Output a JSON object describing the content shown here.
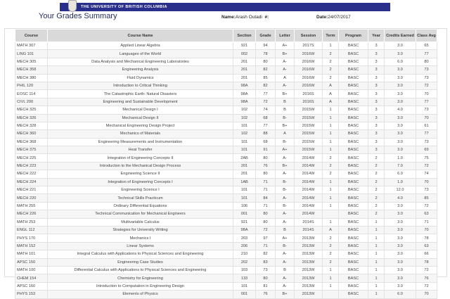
{
  "header": {
    "university": "THE UNIVERSITY OF BRITISH COLUMBIA",
    "logo_text": "UBC",
    "title": "Your Grades Summary",
    "name_label": "Name:",
    "name_value": "Arash Outadi",
    "id_label": "#:",
    "date_label": "Date:",
    "date_value": "24/07/2017"
  },
  "table": {
    "columns": [
      "Course",
      "Course Name",
      "Section",
      "Grade",
      "Letter",
      "Session",
      "Term",
      "Program",
      "Year",
      "Credits Earned",
      "Class Avg"
    ],
    "rows": [
      [
        "MATH 307",
        "Applied Linear Algebra",
        "921",
        "94",
        "A+",
        "2017S",
        "1",
        "BASC",
        "3",
        "3.0",
        "65"
      ],
      [
        "LING 101",
        "Languages of the World",
        "002",
        "78",
        "B+",
        "2016W",
        "2",
        "BASC",
        "3",
        "3.0",
        "77"
      ],
      [
        "MECH 305",
        "Data Analysis and Mechanical Engineering Laboratories",
        "201",
        "80",
        "A-",
        "2016W",
        "2",
        "BASC",
        "3",
        "6.0",
        "80"
      ],
      [
        "MECH 358",
        "Engineering Analysis",
        "201",
        "82",
        "A-",
        "2016W",
        "2",
        "BASC",
        "3",
        "3.0",
        "73"
      ],
      [
        "MECH 380",
        "Fluid Dynamics",
        "201",
        "85",
        "A",
        "2016W",
        "2",
        "BASC",
        "3",
        "3.0",
        "73"
      ],
      [
        "PHIL 120",
        "Introduction to Critical Thinking",
        "98A",
        "82",
        "A-",
        "2016W",
        "A",
        "BASC",
        "3",
        "3.0",
        "72"
      ],
      [
        "EOSC 114",
        "The Catastrophic Earth: Natural Disasters",
        "98A",
        "77",
        "B+",
        "2016S",
        "A",
        "BASC",
        "3",
        "3.0",
        "70"
      ],
      [
        "CIVL 200",
        "Engineering and Sustainable Development",
        "98A",
        "72",
        "B",
        "2016S",
        "A",
        "BASC",
        "3",
        "3.0",
        "77"
      ],
      [
        "MECH 325",
        "Mechanical Design I",
        "102",
        "74",
        "B",
        "2015W",
        "1",
        "BASC",
        "3",
        "4.0",
        "73"
      ],
      [
        "MECH 326",
        "Mechanical Design II",
        "102",
        "68",
        "B-",
        "2015W",
        "1",
        "BASC",
        "3",
        "3.0",
        "70"
      ],
      [
        "MECH 328",
        "Mechanical Engineering Design Project",
        "101",
        "77",
        "B+",
        "2015W",
        "1",
        "BASC",
        "3",
        "3.0",
        "61"
      ],
      [
        "MECH 360",
        "Mechanics of Materials",
        "102",
        "88",
        "A",
        "2015W",
        "1",
        "BASC",
        "3",
        "3.0",
        "77"
      ],
      [
        "MECH 368",
        "Engineering Measurements and Instrumentation",
        "101",
        "68",
        "B-",
        "2015W",
        "1",
        "BASC",
        "3",
        "3.0",
        "73"
      ],
      [
        "MECH 375",
        "Heat Transfer",
        "101",
        "91",
        "A+",
        "2015W",
        "1",
        "BASC",
        "3",
        "3.0",
        "69"
      ],
      [
        "MECH 225",
        "Integration of Engineering Concepts II",
        "2AB",
        "80",
        "A-",
        "2014W",
        "2",
        "BASC",
        "2",
        "1.0",
        "75"
      ],
      [
        "MECH 223",
        "Introduction to the Mechanical Design Process",
        "201",
        "76",
        "B+",
        "2014W",
        "2",
        "BASC",
        "2",
        "7.0",
        "72"
      ],
      [
        "MECH 222",
        "Engineering Science II",
        "201",
        "80",
        "A-",
        "2014W",
        "2",
        "BASC",
        "2",
        "6.0",
        "74"
      ],
      [
        "MECH 224",
        "Integration of Engineering Concepts I",
        "1AB",
        "71",
        "B-",
        "2014W",
        "1",
        "BASC",
        "2",
        "1.0",
        "70"
      ],
      [
        "MECH 221",
        "Engineering Science I",
        "101",
        "71",
        "B-",
        "2014W",
        "1",
        "BASC",
        "2",
        "12.0",
        "73"
      ],
      [
        "MECH 220",
        "Technical Skills Practicum",
        "101",
        "84",
        "A-",
        "2014W",
        "1",
        "BASC",
        "2",
        "4.0",
        "85"
      ],
      [
        "MATH 255",
        "Ordinary Differential Equations",
        "106",
        "71",
        "B-",
        "2014W",
        "1",
        "BASC",
        "2",
        "3.0",
        "72"
      ],
      [
        "MECH 226",
        "Technical Communication for Mechanical Engineers",
        "001",
        "80",
        "A-",
        "2014W",
        "",
        "BASC",
        "2",
        "3.0",
        "63"
      ],
      [
        "MATH 253",
        "Multivariable Calculus",
        "921",
        "80",
        "A-",
        "2014S",
        "1",
        "BASC",
        "1",
        "3.0",
        "71"
      ],
      [
        "ENGL 112",
        "Strategies for University Writing",
        "98A",
        "72",
        "B",
        "2014S",
        "A",
        "BASC",
        "1",
        "3.0",
        "70"
      ],
      [
        "PHYS 170",
        "Mechanics I",
        "203",
        "97",
        "A+",
        "2013W",
        "2",
        "BASC",
        "1",
        "3.0",
        "78"
      ],
      [
        "MATH 152",
        "Linear Systems",
        "206",
        "71",
        "B-",
        "2013W",
        "2",
        "BASC",
        "1",
        "3.0",
        "63"
      ],
      [
        "MATH 101",
        "Integral Calculus with Applications to Physical Sciences and Engineering",
        "210",
        "82",
        "A-",
        "2013W",
        "2",
        "BASC",
        "1",
        "3.0",
        "66"
      ],
      [
        "APSC 150",
        "Engineering Case Studies",
        "202",
        "83",
        "A-",
        "2013W",
        "2",
        "BASC",
        "1",
        "3.0",
        "78"
      ],
      [
        "MATH 100",
        "Differential Calculus with Applications to Physical Sciences and Engineering",
        "103",
        "73",
        "B",
        "2013W",
        "1",
        "BASC",
        "1",
        "3.0",
        "72"
      ],
      [
        "CHEM 154",
        "Chemistry for Engineering",
        "133",
        "80",
        "A-",
        "2013W",
        "1",
        "BASC",
        "1",
        "3.0",
        "76"
      ],
      [
        "APSC 160",
        "Introduction to Computation in Engineering Design",
        "101",
        "81",
        "A-",
        "2013W",
        "1",
        "BASC",
        "1",
        "3.0",
        "72"
      ],
      [
        "PHYS 153",
        "Elements of Physics",
        "001",
        "76",
        "B+",
        "2013W",
        "",
        "BASC",
        "1",
        "6.0",
        "70"
      ]
    ]
  },
  "colors": {
    "banner": "#2b2f8c",
    "header_bg": "#d9d9d9"
  }
}
